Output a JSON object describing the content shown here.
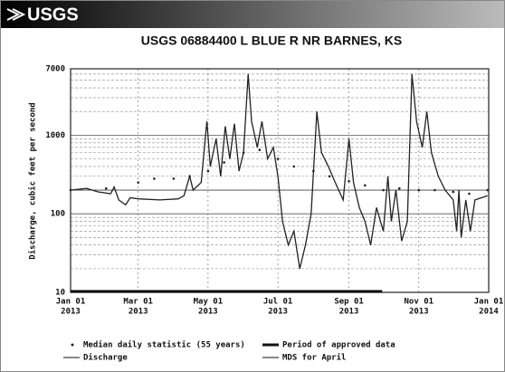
{
  "header": {
    "logo": "USGS"
  },
  "chart_data": {
    "type": "line",
    "title": "USGS 06884400 L BLUE R NR BARNES, KS",
    "ylabel": "Discharge, cubic feet per second",
    "log_scale": true,
    "ylim": [
      10,
      7000
    ],
    "yticks": [
      10,
      100,
      1000,
      7000
    ],
    "minor_yticks": [
      20,
      30,
      40,
      50,
      60,
      70,
      80,
      90,
      200,
      300,
      400,
      500,
      600,
      700,
      800,
      900,
      2000,
      3000,
      4000,
      5000,
      6000
    ],
    "xlim": [
      "2013-01-01",
      "2014-01-01"
    ],
    "xticks": [
      {
        "value": "2013-01-01",
        "label": "Jan 01",
        "year": "2013"
      },
      {
        "value": "2013-03-01",
        "label": "Mar 01",
        "year": "2013"
      },
      {
        "value": "2013-05-01",
        "label": "May 01",
        "year": "2013"
      },
      {
        "value": "2013-07-01",
        "label": "Jul 01",
        "year": "2013"
      },
      {
        "value": "2013-09-01",
        "label": "Sep 01",
        "year": "2013"
      },
      {
        "value": "2013-11-01",
        "label": "Nov 01",
        "year": "2013"
      },
      {
        "value": "2014-01-01",
        "label": "Jan 01",
        "year": "2014"
      }
    ],
    "grid": true,
    "series": [
      {
        "name": "Discharge",
        "color": "#222222",
        "x": [
          "2013-01-01",
          "2013-01-15",
          "2013-01-25",
          "2013-02-05",
          "2013-02-08",
          "2013-02-12",
          "2013-02-18",
          "2013-02-22",
          "2013-03-01",
          "2013-03-20",
          "2013-04-05",
          "2013-04-10",
          "2013-04-15",
          "2013-04-18",
          "2013-04-25",
          "2013-04-30",
          "2013-05-03",
          "2013-05-08",
          "2013-05-12",
          "2013-05-16",
          "2013-05-20",
          "2013-05-24",
          "2013-05-28",
          "2013-06-01",
          "2013-06-05",
          "2013-06-08",
          "2013-06-13",
          "2013-06-17",
          "2013-06-22",
          "2013-06-27",
          "2013-07-01",
          "2013-07-05",
          "2013-07-10",
          "2013-07-15",
          "2013-07-20",
          "2013-07-25",
          "2013-07-30",
          "2013-08-04",
          "2013-08-08",
          "2013-08-14",
          "2013-08-20",
          "2013-08-27",
          "2013-09-01",
          "2013-09-05",
          "2013-09-10",
          "2013-09-15",
          "2013-09-20",
          "2013-09-25",
          "2013-10-01",
          "2013-10-05",
          "2013-10-08",
          "2013-10-12",
          "2013-10-17",
          "2013-10-22",
          "2013-10-26",
          "2013-10-30",
          "2013-11-04",
          "2013-11-08",
          "2013-11-12",
          "2013-11-18",
          "2013-11-24",
          "2013-12-01",
          "2013-12-04",
          "2013-12-06",
          "2013-12-08",
          "2013-12-12",
          "2013-12-16",
          "2013-12-20",
          "2013-12-31"
        ],
        "values": [
          200,
          210,
          190,
          180,
          220,
          150,
          130,
          160,
          155,
          150,
          155,
          170,
          300,
          200,
          250,
          1500,
          400,
          900,
          300,
          1300,
          500,
          1400,
          350,
          600,
          6000,
          1500,
          700,
          1500,
          500,
          700,
          300,
          80,
          40,
          60,
          20,
          40,
          100,
          2000,
          600,
          400,
          250,
          150,
          900,
          250,
          120,
          80,
          40,
          120,
          60,
          300,
          80,
          200,
          45,
          80,
          6000,
          1500,
          700,
          2000,
          600,
          300,
          200,
          150,
          60,
          200,
          50,
          150,
          60,
          150,
          170
        ]
      },
      {
        "name": "Median daily statistic (55 years)",
        "color": "#222222",
        "x": [
          "2013-01-01",
          "2013-02-01",
          "2013-03-01",
          "2013-03-15",
          "2013-04-01",
          "2013-04-15",
          "2013-05-01",
          "2013-05-15",
          "2013-06-01",
          "2013-06-15",
          "2013-07-01",
          "2013-07-15",
          "2013-08-01",
          "2013-08-15",
          "2013-09-01",
          "2013-09-15",
          "2013-10-01",
          "2013-10-15",
          "2013-11-01",
          "2013-11-15",
          "2013-12-01",
          "2013-12-15",
          "2013-12-31"
        ],
        "values": [
          200,
          210,
          250,
          280,
          280,
          300,
          350,
          450,
          600,
          650,
          500,
          400,
          350,
          300,
          260,
          230,
          200,
          210,
          200,
          200,
          190,
          180,
          200
        ]
      }
    ],
    "approved_period": {
      "name": "Period of approved data",
      "x": [
        "2013-01-01",
        "2013-09-30"
      ]
    },
    "mds": {
      "name": "MDS for April",
      "value": 200
    }
  }
}
